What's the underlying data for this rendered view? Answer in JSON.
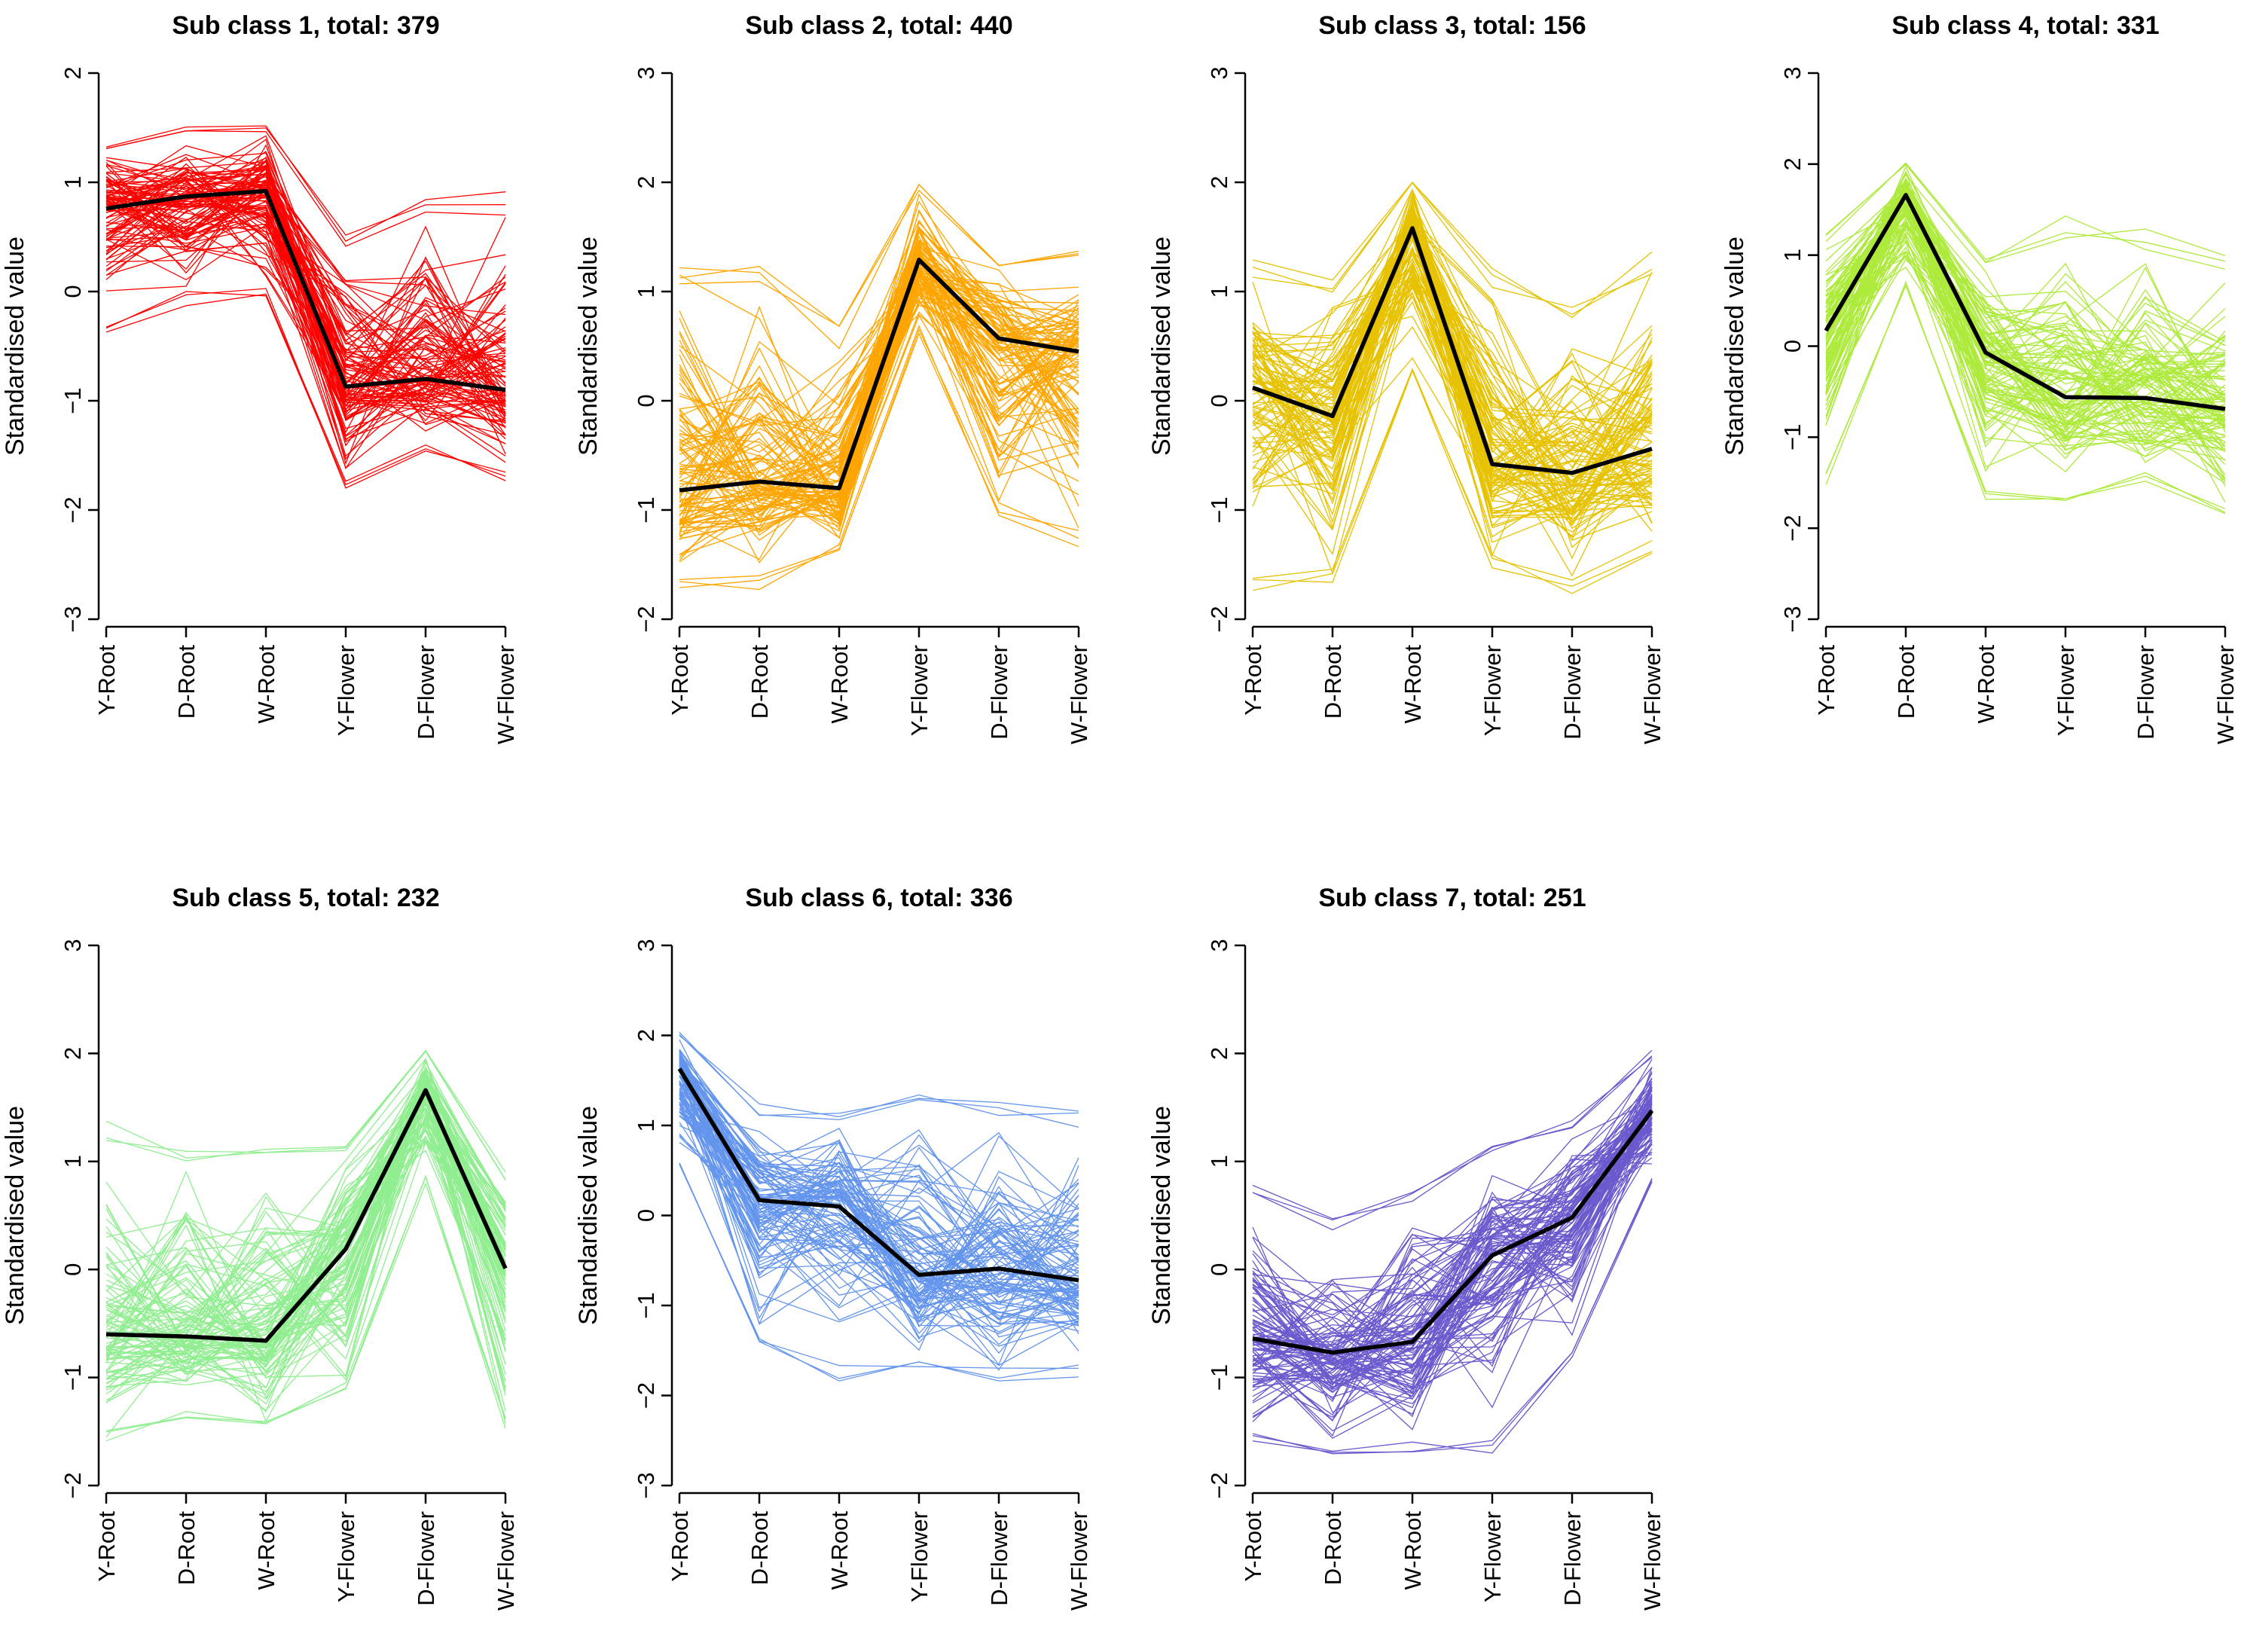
{
  "chart_data": [
    {
      "type": "line",
      "title": "Sub class 1, total: 379",
      "ylabel": "Standardised value",
      "categories": [
        "Y-Root",
        "D-Root",
        "W-Root",
        "Y-Flower",
        "D-Flower",
        "W-Flower"
      ],
      "yticks": [
        "−3",
        "−2",
        "−1",
        "0",
        "1",
        "2"
      ],
      "ylim": [
        -3,
        2
      ],
      "color": "#ff0000",
      "mean": [
        0.76,
        0.87,
        0.92,
        -0.87,
        -0.8,
        -0.9
      ],
      "band_upper": [
        1.4,
        1.52,
        1.55,
        0.6,
        0.95,
        0.97
      ],
      "band_lower": [
        -0.38,
        -0.15,
        -0.1,
        -1.83,
        -1.47,
        -1.75
      ]
    },
    {
      "type": "line",
      "title": "Sub class 2, total: 440",
      "ylabel": "Standardised value",
      "categories": [
        "Y-Root",
        "D-Root",
        "W-Root",
        "Y-Flower",
        "D-Flower",
        "W-Flower"
      ],
      "yticks": [
        "−2",
        "−1",
        "0",
        "1",
        "2",
        "3"
      ],
      "ylim": [
        -2,
        3
      ],
      "color": "#ffa500",
      "mean": [
        -0.82,
        -0.74,
        -0.8,
        1.29,
        0.57,
        0.45
      ],
      "band_upper": [
        1.32,
        1.28,
        0.7,
        2.03,
        1.35,
        1.38
      ],
      "band_lower": [
        -1.75,
        -1.75,
        -1.4,
        0.6,
        -1.05,
        -1.4
      ]
    },
    {
      "type": "line",
      "title": "Sub class 3, total: 156",
      "ylabel": "Standardised value",
      "categories": [
        "Y-Root",
        "D-Root",
        "W-Root",
        "Y-Flower",
        "D-Flower",
        "W-Flower"
      ],
      "yticks": [
        "−2",
        "−1",
        "0",
        "1",
        "2",
        "3"
      ],
      "ylim": [
        -2,
        3
      ],
      "color": "#e6c200",
      "mean": [
        0.12,
        -0.14,
        1.58,
        -0.58,
        -0.66,
        -0.44
      ],
      "band_upper": [
        1.3,
        1.15,
        2.03,
        1.25,
        0.95,
        1.38
      ],
      "band_lower": [
        -1.85,
        -1.75,
        0.2,
        -1.55,
        -1.8,
        -1.4
      ]
    },
    {
      "type": "line",
      "title": "Sub class 4, total: 331",
      "ylabel": "Standardised value",
      "categories": [
        "Y-Root",
        "D-Root",
        "W-Root",
        "Y-Flower",
        "D-Flower",
        "W-Flower"
      ],
      "yticks": [
        "−3",
        "−2",
        "−1",
        "0",
        "1",
        "2",
        "3"
      ],
      "ylim": [
        -3,
        3
      ],
      "color": "#adea3c",
      "mean": [
        0.17,
        1.66,
        -0.07,
        -0.56,
        -0.57,
        -0.69
      ],
      "band_upper": [
        1.25,
        2.05,
        1.05,
        1.48,
        1.3,
        1.05
      ],
      "band_lower": [
        -1.62,
        0.55,
        -1.75,
        -1.7,
        -1.52,
        -1.93
      ]
    },
    {
      "type": "line",
      "title": "Sub class 5, total: 232",
      "ylabel": "Standardised value",
      "categories": [
        "Y-Root",
        "D-Root",
        "W-Root",
        "Y-Flower",
        "D-Flower",
        "W-Flower"
      ],
      "yticks": [
        "−2",
        "−1",
        "0",
        "1",
        "2",
        "3"
      ],
      "ylim": [
        -2,
        3
      ],
      "color": "#90ee90",
      "mean": [
        -0.6,
        -0.62,
        -0.66,
        0.19,
        1.66,
        0.01
      ],
      "band_upper": [
        1.38,
        1.15,
        1.2,
        1.18,
        2.03,
        0.95
      ],
      "band_lower": [
        -1.6,
        -1.38,
        -1.52,
        -1.25,
        0.78,
        -1.52
      ]
    },
    {
      "type": "line",
      "title": "Sub class 6, total: 336",
      "ylabel": "Standardised value",
      "categories": [
        "Y-Root",
        "D-Root",
        "W-Root",
        "Y-Flower",
        "D-Flower",
        "W-Flower"
      ],
      "yticks": [
        "−3",
        "−2",
        "−1",
        "0",
        "1",
        "2",
        "3"
      ],
      "ylim": [
        -3,
        3
      ],
      "color": "#6495ed",
      "mean": [
        1.63,
        0.17,
        0.1,
        -0.66,
        -0.59,
        -0.72
      ],
      "band_upper": [
        2.05,
        1.25,
        1.15,
        1.35,
        1.4,
        1.28
      ],
      "band_lower": [
        0.55,
        -1.58,
        -1.87,
        -1.78,
        -1.85,
        -1.82
      ]
    },
    {
      "type": "line",
      "title": "Sub class 7, total: 251",
      "ylabel": "Standardised value",
      "categories": [
        "Y-Root",
        "D-Root",
        "W-Root",
        "Y-Flower",
        "D-Flower",
        "W-Flower"
      ],
      "yticks": [
        "−2",
        "−1",
        "0",
        "1",
        "2",
        "3"
      ],
      "ylim": [
        -2,
        3
      ],
      "color": "#6a5acd",
      "mean": [
        -0.64,
        -0.77,
        -0.67,
        0.13,
        0.48,
        1.47
      ],
      "band_upper": [
        0.9,
        0.55,
        0.8,
        1.15,
        1.45,
        2.05
      ],
      "band_lower": [
        -1.62,
        -1.78,
        -1.72,
        -1.75,
        -0.85,
        0.8
      ]
    }
  ]
}
